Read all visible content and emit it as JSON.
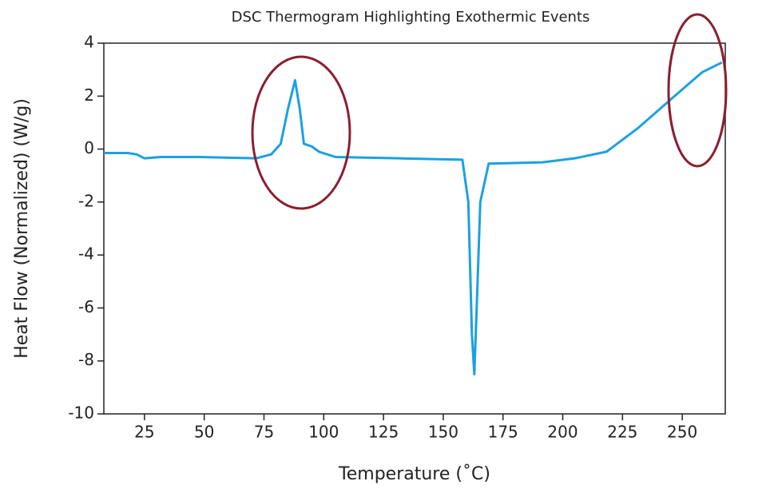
{
  "chart_data": {
    "type": "line",
    "title": "DSC Thermogram Highlighting Exothermic Events",
    "xlabel": "Temperature (˚C)",
    "ylabel": "Heat Flow (Normalized) (W/g)",
    "x": [
      8,
      18,
      21.7,
      25,
      31.7,
      48,
      71.7,
      78,
      82,
      85,
      88,
      90,
      91.7,
      95,
      98,
      105,
      131.7,
      158,
      160.5,
      162,
      163,
      164,
      165.5,
      169,
      191.6,
      205,
      218.3,
      231.6,
      245,
      258.3,
      266.6
    ],
    "series": [
      {
        "name": "Heat Flow",
        "color": "#1ba1e2",
        "values": [
          -0.15,
          -0.15,
          -0.2,
          -0.35,
          -0.3,
          -0.3,
          -0.35,
          -0.2,
          0.2,
          1.5,
          2.6,
          1.5,
          0.2,
          0.1,
          -0.1,
          -0.3,
          -0.35,
          -0.4,
          -2,
          -7,
          -8.5,
          -6,
          -2,
          -0.55,
          -0.5,
          -0.35,
          -0.1,
          0.8,
          1.86,
          2.9,
          3.27
        ]
      }
    ],
    "xlim": [
      8,
      268
    ],
    "xticks": [
      25,
      50,
      75,
      100,
      125,
      150,
      175,
      200,
      225,
      250
    ],
    "ylim": [
      -10,
      4
    ],
    "yticks": [
      -10,
      -8,
      -6,
      -4,
      -2,
      0,
      2,
      4
    ]
  }
}
